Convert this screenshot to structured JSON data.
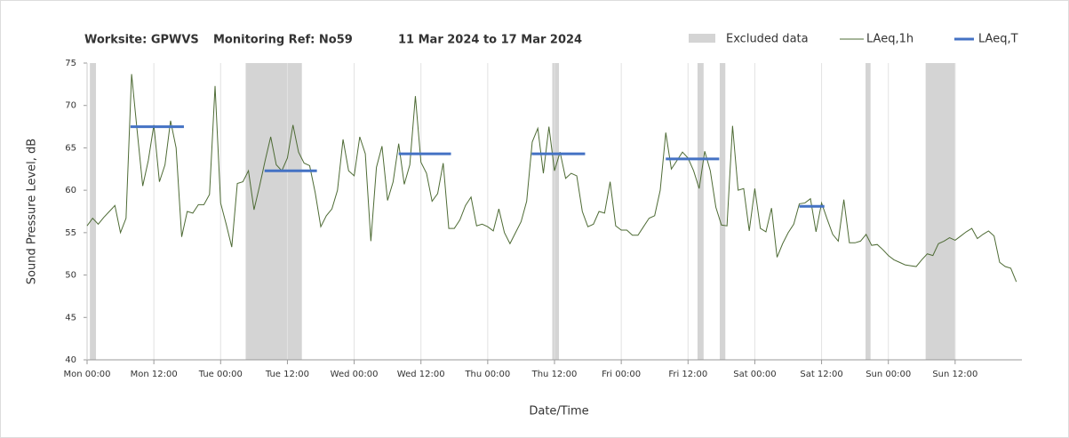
{
  "chart_data": {
    "type": "line",
    "title": [
      "Worksite: GPWVS",
      "Monitoring Ref: No59",
      "11 Mar 2024 to 17 Mar 2024"
    ],
    "xlabel": "Date/Time",
    "ylabel": "Sound Pressure Level, dB",
    "x": [
      0,
      1,
      2,
      3,
      4,
      5,
      6,
      7,
      8,
      9,
      10,
      11,
      12,
      13,
      14,
      15,
      16,
      17,
      18,
      19,
      20,
      21,
      22,
      23,
      24,
      25,
      26,
      27,
      28,
      29,
      30,
      31,
      32,
      33,
      34,
      35,
      36,
      37,
      38,
      39,
      40,
      41,
      42,
      43,
      44,
      45,
      46,
      47,
      48,
      49,
      50,
      51,
      52,
      53,
      54,
      55,
      56,
      57,
      58,
      59,
      60,
      61,
      62,
      63,
      64,
      65,
      66,
      67,
      68,
      69,
      70,
      71,
      72,
      73,
      74,
      75,
      76,
      77,
      78,
      79,
      80,
      81,
      82,
      83,
      84,
      85,
      86,
      87,
      88,
      89,
      90,
      91,
      92,
      93,
      94,
      95,
      96,
      97,
      98,
      99,
      100,
      101,
      102,
      103,
      104,
      105,
      106,
      107,
      108,
      109,
      110,
      111,
      112,
      113,
      114,
      115,
      116,
      117,
      118,
      119,
      120,
      121,
      122,
      123,
      124,
      125,
      126,
      127,
      128,
      129,
      130,
      131,
      132,
      133,
      134,
      135,
      136,
      137,
      138,
      139,
      140,
      141,
      142,
      143,
      144,
      145,
      146,
      147,
      148,
      149,
      150,
      151,
      152,
      153,
      154,
      155,
      156,
      157,
      158,
      159,
      160,
      161,
      162,
      163,
      164,
      165,
      166,
      167
    ],
    "series": [
      {
        "name": "LAeq,1h",
        "color": "#4e6b35",
        "values": [
          55.8,
          56.7,
          56.0,
          56.8,
          57.5,
          58.2,
          55.0,
          56.7,
          73.7,
          67,
          60.5,
          63.5,
          67.7,
          61.0,
          63.0,
          68.2,
          65,
          54.5,
          57.5,
          57.3,
          58.3,
          58.3,
          59.5,
          72.3,
          58.5,
          56,
          53.3,
          60.8,
          61.0,
          62.3,
          57.7,
          60.5,
          63.5,
          66.3,
          63,
          62.3,
          63.8,
          67.7,
          64.5,
          63.2,
          62.9,
          59.7,
          55.7,
          57,
          57.8,
          60,
          66,
          62.3,
          61.7,
          66.3,
          64.3,
          54,
          62.7,
          65.2,
          58.8,
          61,
          65.5,
          60.7,
          63,
          71.1,
          63.3,
          62,
          58.7,
          59.6,
          63.2,
          55.5,
          55.5,
          56.5,
          58.2,
          59.2,
          55.8,
          56,
          55.7,
          55.2,
          57.8,
          55,
          53.7,
          55,
          56.3,
          58.7,
          65.7,
          67.3,
          62,
          67.5,
          62.3,
          64.5,
          61.4,
          62,
          61.7,
          57.5,
          55.7,
          56,
          57.5,
          57.3,
          61,
          55.8,
          55.3,
          55.3,
          54.7,
          54.7,
          55.7,
          56.7,
          57,
          60,
          66.8,
          62.5,
          63.5,
          64.5,
          63.8,
          62.3,
          60.2,
          64.6,
          62.3,
          58,
          55.9,
          55.8,
          67.6,
          60,
          60.2,
          55.2,
          60.2,
          55.5,
          55.1,
          57.9,
          52.1,
          53.7,
          55,
          56,
          58.4,
          58.5,
          59,
          55.1,
          58.5,
          56.6,
          54.8,
          54,
          58.9,
          53.8,
          53.8,
          54,
          54.8,
          53.5,
          53.6,
          53,
          52.3,
          51.8,
          51.5,
          51.2,
          51.1,
          51,
          51.8,
          52.5,
          52.3,
          53.7,
          54,
          54.4,
          54.1,
          54.6,
          55.1,
          55.5,
          54.3,
          54.8,
          55.2,
          54.6,
          51.5,
          51,
          50.8,
          49.2
        ]
      }
    ],
    "excluded": {
      "name": "Excluded data",
      "color": "#d4d4d4",
      "ranges": [
        [
          0.5,
          1.6
        ],
        [
          28.5,
          38.6
        ],
        [
          83.6,
          84.8
        ],
        [
          109.7,
          110.8
        ],
        [
          113.7,
          114.7
        ],
        [
          139.9,
          140.8
        ],
        [
          150.7,
          156
        ]
      ]
    },
    "laeq_t": {
      "name": "LAeq,T",
      "color": "#4472c4",
      "segments": [
        {
          "start": 7.8,
          "end": 17.4,
          "value": 67.5
        },
        {
          "start": 31.9,
          "end": 41.3,
          "value": 62.3
        },
        {
          "start": 56,
          "end": 65.4,
          "value": 64.3
        },
        {
          "start": 79.9,
          "end": 89.5,
          "value": 64.3
        },
        {
          "start": 104,
          "end": 113.6,
          "value": 63.7
        },
        {
          "start": 128,
          "end": 132.5,
          "value": 58.1
        }
      ]
    },
    "xlim": [
      0,
      168
    ],
    "xticks": [
      {
        "value": 0,
        "label": "Mon 00:00"
      },
      {
        "value": 12,
        "label": "Mon 12:00"
      },
      {
        "value": 24,
        "label": "Tue 00:00"
      },
      {
        "value": 36,
        "label": "Tue 12:00"
      },
      {
        "value": 48,
        "label": "Wed 00:00"
      },
      {
        "value": 60,
        "label": "Wed 12:00"
      },
      {
        "value": 72,
        "label": "Thu 00:00"
      },
      {
        "value": 84,
        "label": "Thu 12:00"
      },
      {
        "value": 96,
        "label": "Fri 00:00"
      },
      {
        "value": 108,
        "label": "Fri 12:00"
      },
      {
        "value": 120,
        "label": "Sat 00:00"
      },
      {
        "value": 132,
        "label": "Sat 12:00"
      },
      {
        "value": 144,
        "label": "Sun 00:00"
      },
      {
        "value": 156,
        "label": "Sun 12:00"
      }
    ],
    "ylim": [
      40,
      75
    ],
    "yticks": [
      40,
      45,
      50,
      55,
      60,
      65,
      70,
      75
    ],
    "grid": "x"
  }
}
